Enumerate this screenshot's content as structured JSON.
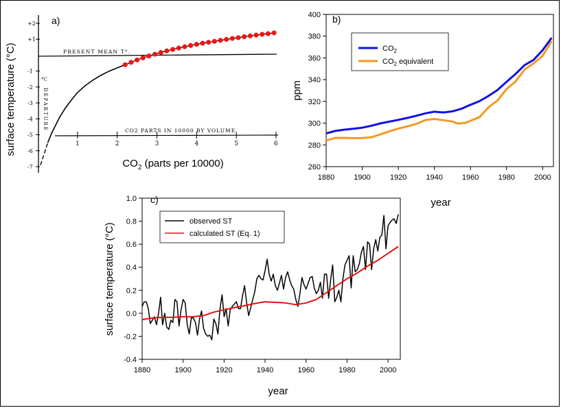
{
  "chart_data": [
    {
      "panel": "a",
      "panel_label": "a)",
      "type": "line",
      "ylabel": "surface temperature (°C)",
      "xlabel_main": "CO",
      "xlabel_sub": "2",
      "xlabel_tail": " (parts per 10000)",
      "xlim": [
        0,
        6
      ],
      "ylim": [
        -7,
        2
      ],
      "x_ticks": [
        1,
        2,
        3,
        4,
        5,
        6
      ],
      "y_ticks": [
        {
          "v": 2,
          "label": "+2"
        },
        {
          "v": 1,
          "label": "+1"
        },
        {
          "v": -1,
          "label": "-1"
        },
        {
          "v": -2,
          "label": "-2"
        },
        {
          "v": -3,
          "label": "-3"
        },
        {
          "v": -4,
          "label": "-4"
        },
        {
          "v": -5,
          "label": "-5"
        },
        {
          "v": -6,
          "label": "-6"
        },
        {
          "v": -7,
          "label": "-7"
        }
      ],
      "annotations": {
        "present_mean": "PRESENT MEAN T°.",
        "co2_parts": "CO2 PARTS IN 10000 BY VOLUME",
        "degrees_c": "°C",
        "departure": "DEPARTURE"
      },
      "series": [
        {
          "style": "hand-drawn",
          "x": [
            0.07,
            0.16,
            0.25,
            0.35,
            0.45,
            0.55,
            0.7,
            0.85,
            1.0,
            1.2,
            1.4,
            1.6,
            1.8,
            2.0,
            2.2
          ],
          "y": [
            -6.9,
            -6.2,
            -5.5,
            -4.9,
            -4.4,
            -3.9,
            -3.3,
            -2.8,
            -2.35,
            -1.9,
            -1.55,
            -1.25,
            -1.0,
            -0.8,
            -0.6
          ]
        },
        {
          "style": "red-dots",
          "x": [
            2.2,
            2.35,
            2.5,
            2.65,
            2.8,
            2.95,
            3.1,
            3.25,
            3.4,
            3.55,
            3.7,
            3.85,
            4.0,
            4.15,
            4.3,
            4.45,
            4.6,
            4.75,
            4.9,
            5.05,
            5.2,
            5.35,
            5.5,
            5.65,
            5.8,
            5.95
          ],
          "y": [
            -0.6,
            -0.45,
            -0.3,
            -0.17,
            -0.05,
            0.06,
            0.17,
            0.27,
            0.36,
            0.45,
            0.53,
            0.61,
            0.68,
            0.75,
            0.81,
            0.87,
            0.93,
            0.99,
            1.05,
            1.1,
            1.16,
            1.21,
            1.26,
            1.31,
            1.35,
            1.4
          ]
        }
      ]
    },
    {
      "panel": "b",
      "panel_label": "b)",
      "type": "line",
      "xlabel": "year",
      "ylabel": "ppm",
      "xlim": [
        1880,
        2006
      ],
      "ylim": [
        260,
        400
      ],
      "x_ticks": [
        1880,
        1900,
        1920,
        1940,
        1960,
        1980,
        2000
      ],
      "y_ticks": [
        260,
        280,
        300,
        320,
        340,
        360,
        380,
        400
      ],
      "legend": [
        {
          "main": "CO",
          "sub": "2",
          "tail": "",
          "color": "#1010e0"
        },
        {
          "main": "CO",
          "sub": "2",
          "tail": " equivalent",
          "color": "#f39a1e"
        }
      ],
      "series": [
        {
          "name": "CO2",
          "color": "#1010e0",
          "x": [
            1880,
            1885,
            1890,
            1895,
            1900,
            1905,
            1910,
            1915,
            1920,
            1925,
            1930,
            1935,
            1940,
            1945,
            1950,
            1955,
            1960,
            1965,
            1970,
            1975,
            1980,
            1985,
            1990,
            1995,
            2000,
            2005
          ],
          "y": [
            290.5,
            292.8,
            294.0,
            294.8,
            295.8,
            297.6,
            299.7,
            301.4,
            303.0,
            304.8,
            306.8,
            309.0,
            310.5,
            309.8,
            310.8,
            313.2,
            316.9,
            320.2,
            325.0,
            330.5,
            338.0,
            345.2,
            353.4,
            358.2,
            367.0,
            378.5
          ]
        },
        {
          "name": "CO2 equivalent",
          "color": "#f39a1e",
          "x": [
            1880,
            1885,
            1890,
            1895,
            1900,
            1905,
            1910,
            1915,
            1920,
            1925,
            1930,
            1935,
            1940,
            1945,
            1950,
            1953,
            1957,
            1960,
            1965,
            1970,
            1975,
            1980,
            1985,
            1990,
            1995,
            2000,
            2005
          ],
          "y": [
            284.0,
            286.4,
            286.5,
            286.2,
            286.3,
            287.0,
            289.6,
            292.4,
            295.0,
            297.0,
            299.3,
            302.8,
            303.8,
            302.7,
            301.5,
            299.6,
            300.2,
            302.2,
            305.5,
            314.5,
            321.0,
            331.3,
            338.3,
            349.3,
            355.0,
            362.0,
            375.5
          ]
        }
      ]
    },
    {
      "panel": "c",
      "panel_label": "c)",
      "type": "line",
      "xlabel": "year",
      "ylabel": "surface temperature (°C)",
      "xlim": [
        1880,
        2006
      ],
      "ylim": [
        -0.4,
        1.0
      ],
      "x_ticks": [
        1880,
        1900,
        1920,
        1940,
        1960,
        1980,
        2000
      ],
      "y_ticks": [
        -0.4,
        -0.2,
        0.0,
        0.2,
        0.4,
        0.6,
        0.8,
        1.0
      ],
      "y_tick_labels": [
        "-0.4",
        "-0.2",
        "0.0",
        "0.2",
        "0.4",
        "0.6",
        "0.8",
        "1.0"
      ],
      "legend": [
        {
          "main": "observed ST",
          "color": "#000000"
        },
        {
          "main": "calculated ST (Eq. 1)",
          "color": "#e01010"
        }
      ],
      "series": [
        {
          "name": "observed ST",
          "color": "#000000",
          "x": [
            1880,
            1881,
            1882,
            1883,
            1884,
            1885,
            1886,
            1887,
            1888,
            1889,
            1890,
            1891,
            1892,
            1893,
            1894,
            1895,
            1896,
            1897,
            1898,
            1899,
            1900,
            1901,
            1902,
            1903,
            1904,
            1905,
            1906,
            1907,
            1908,
            1909,
            1910,
            1911,
            1912,
            1913,
            1914,
            1915,
            1916,
            1917,
            1918,
            1919,
            1920,
            1921,
            1922,
            1923,
            1924,
            1925,
            1926,
            1927,
            1928,
            1929,
            1930,
            1931,
            1932,
            1933,
            1934,
            1935,
            1936,
            1937,
            1938,
            1939,
            1940,
            1941,
            1942,
            1943,
            1944,
            1945,
            1946,
            1947,
            1948,
            1949,
            1950,
            1951,
            1952,
            1953,
            1954,
            1955,
            1956,
            1957,
            1958,
            1959,
            1960,
            1961,
            1962,
            1963,
            1964,
            1965,
            1966,
            1967,
            1968,
            1969,
            1970,
            1971,
            1972,
            1973,
            1974,
            1975,
            1976,
            1977,
            1978,
            1979,
            1980,
            1981,
            1982,
            1983,
            1984,
            1985,
            1986,
            1987,
            1988,
            1989,
            1990,
            1991,
            1992,
            1993,
            1994,
            1995,
            1996,
            1997,
            1998,
            1999,
            2000,
            2001,
            2002,
            2003,
            2004,
            2005
          ],
          "y": [
            0.06,
            0.1,
            0.1,
            0.04,
            -0.09,
            -0.06,
            -0.03,
            -0.1,
            0.0,
            0.14,
            -0.1,
            0.0,
            -0.12,
            -0.14,
            -0.06,
            -0.08,
            0.12,
            0.1,
            -0.11,
            0.03,
            0.12,
            0.09,
            -0.1,
            -0.18,
            -0.04,
            -0.04,
            -0.08,
            -0.19,
            -0.05,
            0.02,
            -0.13,
            -0.18,
            -0.2,
            -0.19,
            -0.23,
            -0.05,
            -0.09,
            -0.18,
            0.04,
            0.16,
            -0.03,
            0.04,
            -0.11,
            0.03,
            0.06,
            0.08,
            0.1,
            0.04,
            0.04,
            0.15,
            0.24,
            0.09,
            -0.02,
            0.05,
            0.12,
            0.19,
            0.3,
            0.33,
            0.3,
            0.29,
            0.37,
            0.47,
            0.34,
            0.28,
            0.34,
            0.24,
            0.2,
            0.26,
            0.33,
            0.21,
            0.31,
            0.36,
            0.29,
            0.24,
            0.21,
            0.12,
            0.06,
            0.17,
            0.31,
            0.25,
            0.21,
            0.26,
            0.31,
            0.32,
            0.22,
            0.17,
            0.2,
            0.27,
            0.13,
            0.34,
            0.34,
            0.13,
            0.29,
            0.42,
            0.1,
            0.14,
            0.2,
            0.1,
            0.3,
            0.42,
            0.46,
            0.5,
            0.22,
            0.5,
            0.36,
            0.38,
            0.43,
            0.53,
            0.58,
            0.38,
            0.62,
            0.6,
            0.38,
            0.56,
            0.64,
            0.54,
            0.66,
            0.68,
            0.85,
            0.56,
            0.76,
            0.79,
            0.81,
            0.82,
            0.78,
            0.86
          ]
        },
        {
          "name": "calculated ST (Eq. 1)",
          "color": "#e01010",
          "x": [
            1880,
            1885,
            1890,
            1895,
            1900,
            1905,
            1910,
            1915,
            1920,
            1925,
            1930,
            1935,
            1940,
            1945,
            1950,
            1955,
            1960,
            1965,
            1970,
            1975,
            1980,
            1985,
            1990,
            1995,
            2000,
            2005
          ],
          "y": [
            -0.055,
            -0.04,
            -0.035,
            -0.035,
            -0.03,
            -0.03,
            -0.02,
            0.01,
            0.03,
            0.05,
            0.065,
            0.085,
            0.1,
            0.095,
            0.09,
            0.075,
            0.09,
            0.12,
            0.18,
            0.24,
            0.3,
            0.35,
            0.41,
            0.46,
            0.52,
            0.58
          ]
        }
      ]
    }
  ]
}
